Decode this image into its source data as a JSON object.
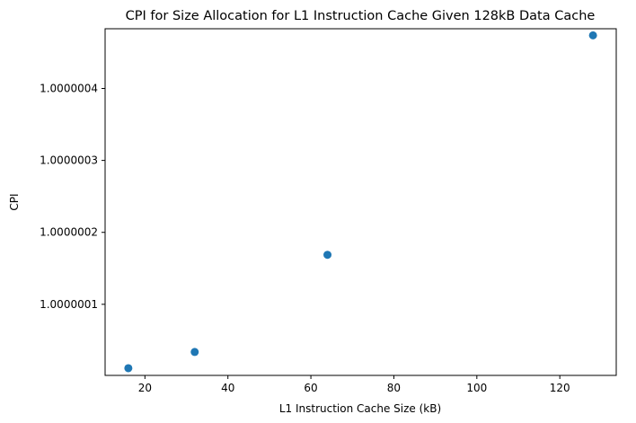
{
  "chart_data": {
    "type": "scatter",
    "title": "CPI for Size Allocation for L1 Instruction Cache Given 128kB Data Cache",
    "x_label": "L1 Instruction Cache Size (kB)",
    "y_label": "CPI",
    "x": [
      16,
      32,
      64,
      128
    ],
    "values": [
      1.0000000112,
      1.0000000338,
      1.0000001688,
      1.0000004738
    ],
    "color": "#1f77b4",
    "xlim": [
      10.4,
      133.6
    ],
    "xticks": [
      20,
      40,
      60,
      80,
      100,
      120
    ],
    "ylim": [
      1.0000000012,
      1.000000483
    ],
    "yticks": [
      1.0000001,
      1.0000002,
      1.0000003,
      1.0000004
    ]
  }
}
